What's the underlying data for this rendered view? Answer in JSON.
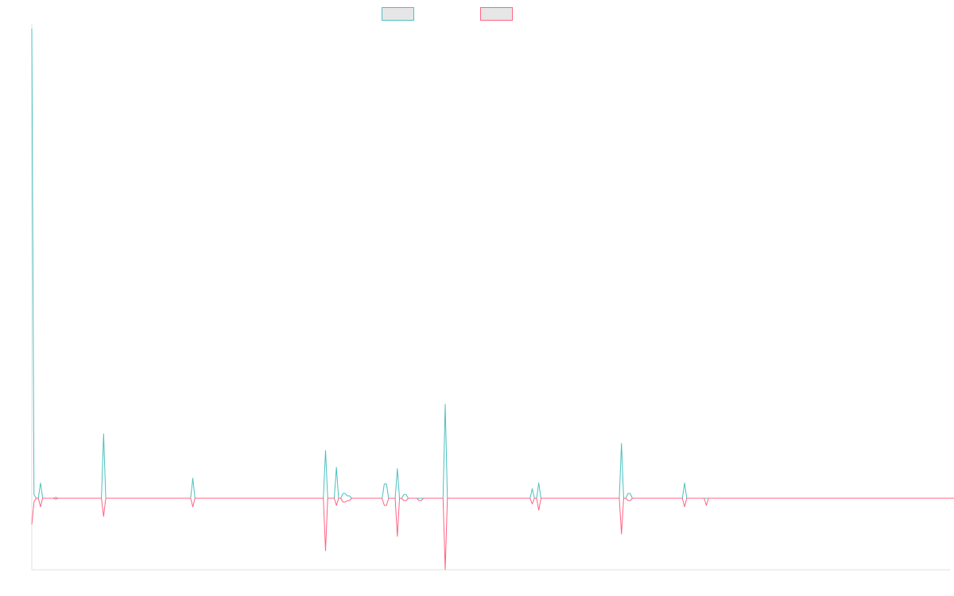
{
  "chart_data": {
    "type": "line",
    "title": "",
    "xlabel": "",
    "ylabel": "",
    "grid": false,
    "legend": "top-center",
    "ylim": [
      -1.5,
      9.85
    ],
    "series": [
      {
        "name": "",
        "color": "#4bc0c0",
        "values": [
          9.85,
          0.08,
          0.0,
          0.0,
          0.32,
          0.0,
          0.0,
          0.0,
          0.0,
          0.0,
          0.0,
          0.02,
          0.0,
          0.0,
          0.0,
          0.0,
          0.0,
          0.0,
          0.0,
          0.0,
          0.0,
          0.0,
          0.0,
          0.0,
          0.0,
          0.0,
          0.0,
          0.0,
          0.0,
          0.0,
          0.0,
          0.0,
          0.0,
          1.35,
          0.0,
          0.0,
          0.0,
          0.0,
          0.0,
          0.0,
          0.0,
          0.0,
          0.0,
          0.0,
          0.0,
          0.0,
          0.0,
          0.0,
          0.0,
          0.0,
          0.0,
          0.0,
          0.0,
          0.0,
          0.0,
          0.0,
          0.0,
          0.0,
          0.0,
          0.0,
          0.0,
          0.0,
          0.0,
          0.0,
          0.0,
          0.0,
          0.0,
          0.0,
          0.0,
          0.0,
          0.0,
          0.0,
          0.0,
          0.0,
          0.42,
          0.0,
          0.0,
          0.0,
          0.0,
          0.0,
          0.0,
          0.0,
          0.0,
          0.0,
          0.0,
          0.0,
          0.0,
          0.0,
          0.0,
          0.0,
          0.0,
          0.0,
          0.0,
          0.0,
          0.0,
          0.0,
          0.0,
          0.0,
          0.0,
          0.0,
          0.0,
          0.0,
          0.0,
          0.0,
          0.0,
          0.0,
          0.0,
          0.0,
          0.0,
          0.0,
          0.0,
          0.0,
          0.0,
          0.0,
          0.0,
          0.0,
          0.0,
          0.0,
          0.0,
          0.0,
          0.0,
          0.0,
          0.0,
          0.0,
          0.0,
          0.0,
          0.0,
          0.0,
          0.0,
          0.0,
          0.0,
          0.0,
          0.0,
          0.0,
          0.0,
          1.0,
          0.0,
          0.0,
          0.0,
          0.0,
          0.65,
          0.0,
          0.0,
          0.1,
          0.1,
          0.05,
          0.05,
          0.0,
          0.0,
          0.0,
          0.0,
          0.0,
          0.0,
          0.0,
          0.0,
          0.0,
          0.0,
          0.0,
          0.0,
          0.0,
          0.0,
          0.0,
          0.3,
          0.3,
          0.0,
          0.0,
          0.0,
          0.0,
          0.62,
          0.0,
          0.0,
          0.08,
          0.08,
          0.0,
          0.0,
          0.0,
          0.0,
          0.0,
          0.0,
          0.0,
          0.0,
          0.0,
          0.0,
          0.0,
          0.0,
          0.0,
          0.0,
          0.0,
          0.0,
          0.0,
          1.97,
          0.0,
          0.0,
          0.0,
          0.0,
          0.0,
          0.0,
          0.0,
          0.0,
          0.0,
          0.0,
          0.0,
          0.0,
          0.0,
          0.0,
          0.0,
          0.0,
          0.0,
          0.0,
          0.0,
          0.0,
          0.0,
          0.0,
          0.0,
          0.0,
          0.0,
          0.0,
          0.0,
          0.0,
          0.0,
          0.0,
          0.0,
          0.0,
          0.0,
          0.0,
          0.0,
          0.0,
          0.0,
          0.0,
          0.0,
          0.2,
          0.0,
          0.0,
          0.32,
          0.0,
          0.0,
          0.0,
          0.0,
          0.0,
          0.0,
          0.0,
          0.0,
          0.0,
          0.0,
          0.0,
          0.0,
          0.0,
          0.0,
          0.0,
          0.0,
          0.0,
          0.0,
          0.0,
          0.0,
          0.0,
          0.0,
          0.0,
          0.0,
          0.0,
          0.0,
          0.0,
          0.0,
          0.0,
          0.0,
          0.0,
          0.0,
          0.0,
          0.0,
          0.0,
          0.0,
          0.0,
          1.15,
          0.0,
          0.0,
          0.1,
          0.1,
          0.0,
          0.0,
          0.0,
          0.0,
          0.0,
          0.0,
          0.0,
          0.0,
          0.0,
          0.0,
          0.0,
          0.0,
          0.0,
          0.0,
          0.0,
          0.0,
          0.0,
          0.0,
          0.0,
          0.0,
          0.0,
          0.0,
          0.0,
          0.0,
          0.32,
          0.0,
          0.0,
          0.0,
          0.0,
          0.0,
          0.0,
          0.0,
          0.0,
          0.0,
          0.0,
          0.0,
          0.0,
          0.0,
          0.0,
          0.0,
          0.0,
          0.0,
          0.0,
          0.0,
          0.0,
          0.0,
          0.0,
          0.0,
          0.0,
          0.0,
          0.0,
          0.0,
          0.0,
          0.0,
          0.0,
          0.0,
          0.0,
          0.0,
          0.0,
          0.0,
          0.0,
          0.0,
          0.0,
          0.0,
          0.0,
          0.0,
          0.0,
          0.0,
          0.0,
          0.0,
          0.0,
          0.0,
          0.0,
          0.0,
          0.0,
          0.0,
          0.0,
          0.0,
          0.0,
          0.0,
          0.0,
          0.0,
          0.0,
          0.0,
          0.0,
          0.0,
          0.0,
          0.0,
          0.0,
          0.0,
          0.0,
          0.0,
          0.0,
          0.0,
          0.0,
          0.0,
          0.0,
          0.0,
          0.0,
          0.0,
          0.0,
          0.0,
          0.0,
          0.0,
          0.0,
          0.0,
          0.0,
          0.0,
          0.0,
          0.0,
          0.0,
          0.0,
          0.0,
          0.0,
          0.0,
          0.0,
          0.0,
          0.0,
          0.0,
          0.0,
          0.0,
          0.0,
          0.0,
          0.0,
          0.0,
          0.0,
          0.0,
          0.0,
          0.0,
          0.0,
          0.0,
          0.0,
          0.0,
          0.0,
          0.0,
          0.0,
          0.0,
          0.0,
          0.0,
          0.0,
          0.0,
          0.0,
          0.0,
          0.0,
          0.0,
          0.0,
          0.0
        ]
      },
      {
        "name": "",
        "color": "#ff6384",
        "values": [
          -0.55,
          -0.08,
          0.0,
          0.0,
          -0.18,
          0.0,
          0.0,
          0.0,
          0.0,
          0.0,
          0.0,
          -0.02,
          0.0,
          0.0,
          0.0,
          0.0,
          0.0,
          0.0,
          0.0,
          0.0,
          0.0,
          0.0,
          0.0,
          0.0,
          0.0,
          0.0,
          0.0,
          0.0,
          0.0,
          0.0,
          0.0,
          0.0,
          0.0,
          -0.38,
          0.0,
          0.0,
          0.0,
          0.0,
          0.0,
          0.0,
          0.0,
          0.0,
          0.0,
          0.0,
          0.0,
          0.0,
          0.0,
          0.0,
          0.0,
          0.0,
          0.0,
          0.0,
          0.0,
          0.0,
          0.0,
          0.0,
          0.0,
          0.0,
          0.0,
          0.0,
          0.0,
          0.0,
          0.0,
          0.0,
          0.0,
          0.0,
          0.0,
          0.0,
          0.0,
          0.0,
          0.0,
          0.0,
          0.0,
          0.0,
          -0.18,
          0.0,
          0.0,
          0.0,
          0.0,
          0.0,
          0.0,
          0.0,
          0.0,
          0.0,
          0.0,
          0.0,
          0.0,
          0.0,
          0.0,
          0.0,
          0.0,
          0.0,
          0.0,
          0.0,
          0.0,
          0.0,
          0.0,
          0.0,
          0.0,
          0.0,
          0.0,
          0.0,
          0.0,
          0.0,
          0.0,
          0.0,
          0.0,
          0.0,
          0.0,
          0.0,
          0.0,
          0.0,
          0.0,
          0.0,
          0.0,
          0.0,
          0.0,
          0.0,
          0.0,
          0.0,
          0.0,
          0.0,
          0.0,
          0.0,
          0.0,
          0.0,
          0.0,
          0.0,
          0.0,
          0.0,
          0.0,
          0.0,
          0.0,
          0.0,
          0.0,
          -1.1,
          0.0,
          0.0,
          0.0,
          0.0,
          -0.15,
          0.0,
          0.0,
          -0.08,
          -0.08,
          -0.05,
          -0.05,
          0.0,
          0.0,
          0.0,
          0.0,
          0.0,
          0.0,
          0.0,
          0.0,
          0.0,
          0.0,
          0.0,
          0.0,
          0.0,
          0.0,
          0.0,
          -0.15,
          -0.15,
          0.0,
          0.0,
          0.0,
          0.0,
          -0.8,
          0.0,
          0.0,
          -0.05,
          -0.05,
          0.0,
          0.0,
          0.0,
          0.0,
          0.0,
          -0.05,
          -0.05,
          0.0,
          0.0,
          0.0,
          0.0,
          0.0,
          0.0,
          0.0,
          0.0,
          0.0,
          0.0,
          -1.5,
          0.0,
          0.0,
          0.0,
          0.0,
          0.0,
          0.0,
          0.0,
          0.0,
          0.0,
          0.0,
          0.0,
          0.0,
          0.0,
          0.0,
          0.0,
          0.0,
          0.0,
          0.0,
          0.0,
          0.0,
          0.0,
          0.0,
          0.0,
          0.0,
          0.0,
          0.0,
          0.0,
          0.0,
          0.0,
          0.0,
          0.0,
          0.0,
          0.0,
          0.0,
          0.0,
          0.0,
          0.0,
          0.0,
          0.0,
          -0.12,
          0.0,
          0.0,
          -0.25,
          0.0,
          0.0,
          0.0,
          0.0,
          0.0,
          0.0,
          0.0,
          0.0,
          0.0,
          0.0,
          0.0,
          0.0,
          0.0,
          0.0,
          0.0,
          0.0,
          0.0,
          0.0,
          0.0,
          0.0,
          0.0,
          0.0,
          0.0,
          0.0,
          0.0,
          0.0,
          0.0,
          0.0,
          0.0,
          0.0,
          0.0,
          0.0,
          0.0,
          0.0,
          0.0,
          0.0,
          0.0,
          -0.75,
          0.0,
          0.0,
          -0.05,
          -0.05,
          0.0,
          0.0,
          0.0,
          0.0,
          0.0,
          0.0,
          0.0,
          0.0,
          0.0,
          0.0,
          0.0,
          0.0,
          0.0,
          0.0,
          0.0,
          0.0,
          0.0,
          0.0,
          0.0,
          0.0,
          0.0,
          0.0,
          0.0,
          0.0,
          -0.18,
          0.0,
          0.0,
          0.0,
          0.0,
          0.0,
          0.0,
          0.0,
          0.0,
          0.0,
          -0.15,
          0.0,
          0.0,
          0.0,
          0.0,
          0.0,
          0.0,
          0.0,
          0.0,
          0.0,
          0.0,
          0.0,
          0.0,
          0.0,
          0.0,
          0.0,
          0.0,
          0.0,
          0.0,
          0.0,
          0.0,
          0.0,
          0.0,
          0.0,
          0.0,
          0.0,
          0.0,
          0.0,
          0.0,
          0.0,
          0.0,
          0.0,
          0.0,
          0.0,
          0.0,
          0.0,
          0.0,
          0.0,
          0.0,
          0.0,
          0.0,
          0.0,
          0.0,
          0.0,
          0.0,
          0.0,
          0.0,
          0.0,
          0.0,
          0.0,
          0.0,
          0.0,
          0.0,
          0.0,
          0.0,
          0.0,
          0.0,
          0.0,
          0.0,
          0.0,
          0.0,
          0.0,
          0.0,
          0.0,
          0.0,
          0.0,
          0.0,
          0.0,
          0.0,
          0.0,
          0.0,
          0.0,
          0.0,
          0.0,
          0.0,
          0.0,
          0.0,
          0.0,
          0.0,
          0.0,
          0.0,
          0.0,
          0.0,
          0.0,
          0.0,
          0.0,
          0.0,
          0.0,
          0.0,
          0.0,
          0.0,
          0.0,
          0.0,
          0.0,
          0.0,
          0.0,
          0.0,
          0.0,
          0.0,
          0.0,
          0.0,
          0.0,
          0.0,
          0.0,
          0.0,
          0.0,
          0.0,
          0.0,
          0.0,
          0.0,
          0.0,
          0.0,
          0.0,
          0.0,
          0.0,
          0.0,
          0.0,
          0.0,
          0.0,
          0.0,
          0.0
        ]
      }
    ]
  }
}
